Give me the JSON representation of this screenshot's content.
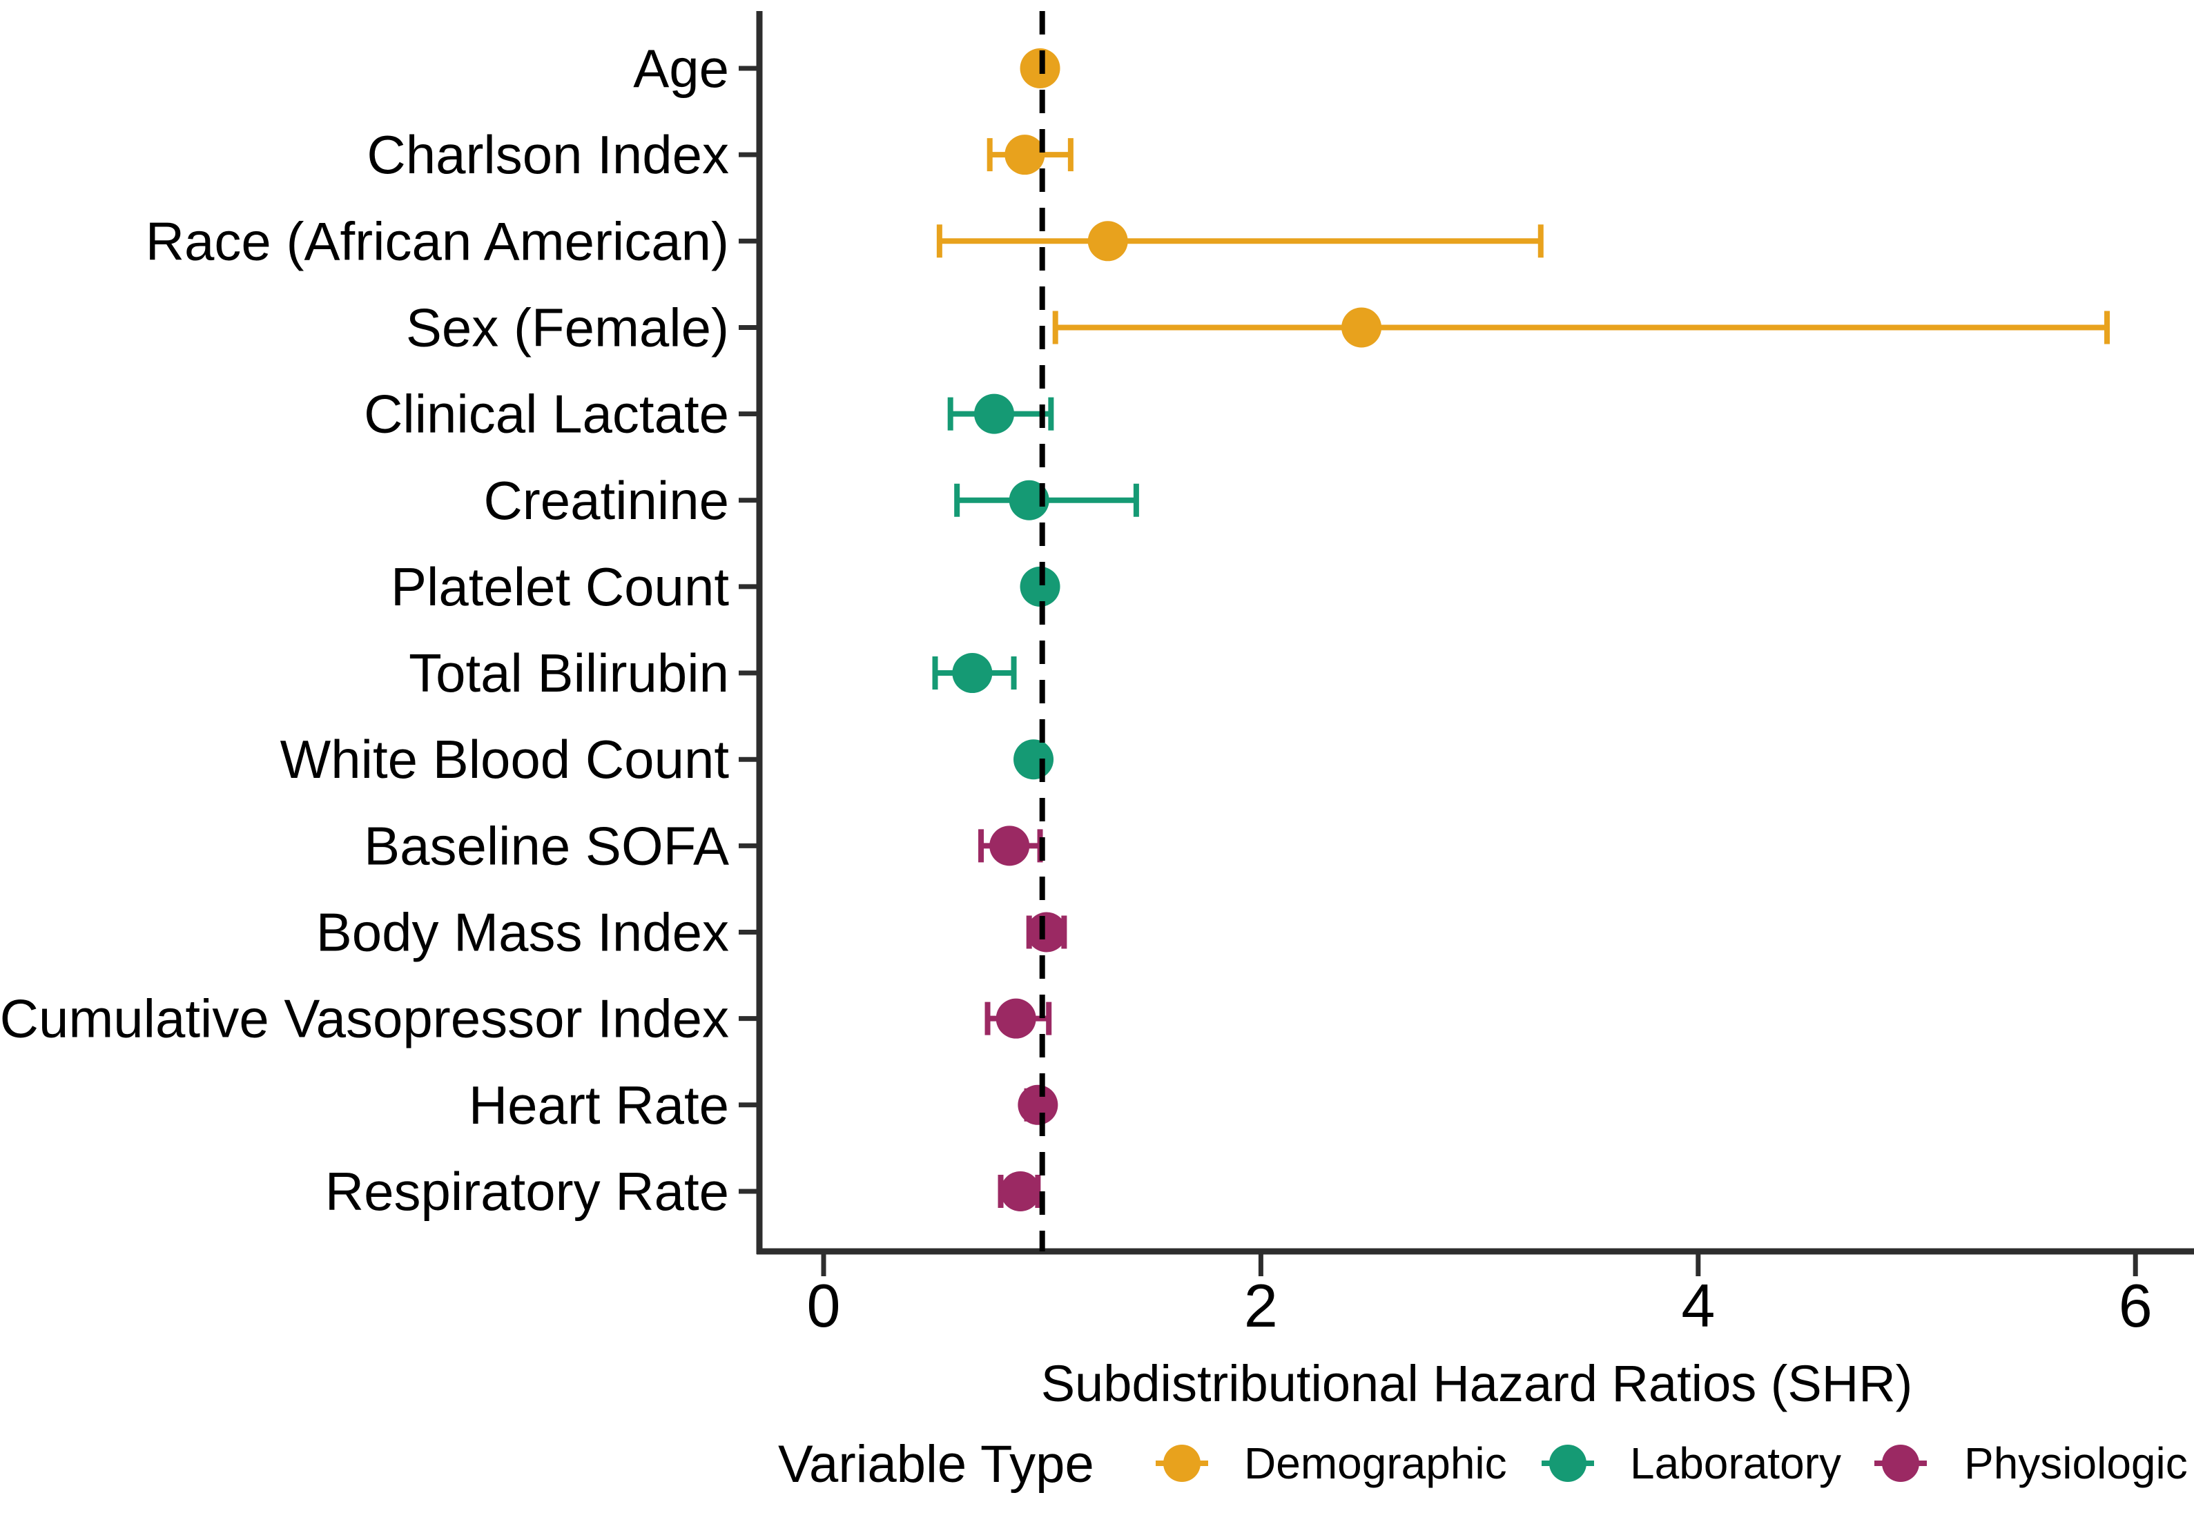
{
  "figure": {
    "background": "#ffffff",
    "axis_color": "#2d2d2d",
    "reference_line": {
      "style": "dashed",
      "color": "#000000"
    }
  },
  "chart_data": {
    "type": "scatter",
    "subtype": "forest-plot-pointrange",
    "title": "",
    "xlabel": "Subdistributional Hazard Ratios (SHR)",
    "ylabel": "",
    "xlim": [
      -0.3,
      6.27
    ],
    "x_ticks": [
      0,
      2,
      4,
      6
    ],
    "grid": false,
    "reference_line_x": 1,
    "groups": {
      "Demographic": "#E8A21D",
      "Laboratory": "#159A74",
      "Physiologic": "#9B2963"
    },
    "rows": [
      {
        "label": "Age",
        "group": "Demographic",
        "shr": 0.99,
        "ci_low": 0.96,
        "ci_high": 1.02
      },
      {
        "label": "Charlson Index",
        "group": "Demographic",
        "shr": 0.92,
        "ci_low": 0.76,
        "ci_high": 1.13
      },
      {
        "label": "Race (African American)",
        "group": "Demographic",
        "shr": 1.3,
        "ci_low": 0.53,
        "ci_high": 3.28
      },
      {
        "label": "Sex (Female)",
        "group": "Demographic",
        "shr": 2.46,
        "ci_low": 1.06,
        "ci_high": 5.87
      },
      {
        "label": "Clinical Lactate",
        "group": "Laboratory",
        "shr": 0.78,
        "ci_low": 0.58,
        "ci_high": 1.04
      },
      {
        "label": "Creatinine",
        "group": "Laboratory",
        "shr": 0.94,
        "ci_low": 0.61,
        "ci_high": 1.43
      },
      {
        "label": "Platelet Count",
        "group": "Laboratory",
        "shr": 0.99,
        "ci_low": 0.96,
        "ci_high": 1.02
      },
      {
        "label": "Total Bilirubin",
        "group": "Laboratory",
        "shr": 0.68,
        "ci_low": 0.51,
        "ci_high": 0.87
      },
      {
        "label": "White Blood Count",
        "group": "Laboratory",
        "shr": 0.96,
        "ci_low": 0.92,
        "ci_high": 1.0
      },
      {
        "label": "Baseline SOFA",
        "group": "Physiologic",
        "shr": 0.85,
        "ci_low": 0.72,
        "ci_high": 0.99
      },
      {
        "label": "Body Mass Index",
        "group": "Physiologic",
        "shr": 1.02,
        "ci_low": 0.94,
        "ci_high": 1.1
      },
      {
        "label": "Cumulative Vasopressor Index",
        "group": "Physiologic",
        "shr": 0.88,
        "ci_low": 0.75,
        "ci_high": 1.03
      },
      {
        "label": "Heart Rate",
        "group": "Physiologic",
        "shr": 0.98,
        "ci_low": 0.93,
        "ci_high": 1.02
      },
      {
        "label": "Respiratory Rate",
        "group": "Physiologic",
        "shr": 0.9,
        "ci_low": 0.81,
        "ci_high": 0.98
      }
    ],
    "legend": {
      "title": "Variable Type",
      "position": "bottom",
      "entries": [
        {
          "label": "Demographic",
          "color": "#E8A21D"
        },
        {
          "label": "Laboratory",
          "color": "#159A74"
        },
        {
          "label": "Physiologic",
          "color": "#9B2963"
        }
      ]
    }
  }
}
